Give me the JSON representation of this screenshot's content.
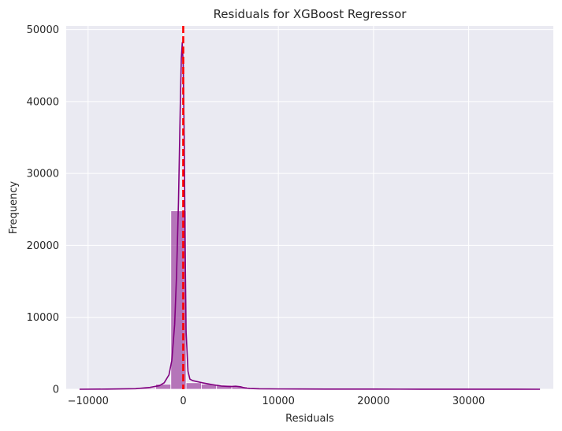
{
  "chart_data": {
    "type": "histogram",
    "title": "Residuals for XGBoost Regressor",
    "xlabel": "Residuals",
    "ylabel": "Frequency",
    "xlim": [
      -12300,
      38900
    ],
    "ylim": [
      0,
      50500
    ],
    "xticks": [
      -10000,
      0,
      10000,
      20000,
      30000
    ],
    "yticks": [
      0,
      10000,
      20000,
      30000,
      40000,
      50000
    ],
    "grid": true,
    "bin_edges": [
      -10900,
      -9300,
      -7700,
      -6100,
      -4500,
      -2900,
      -1300,
      300,
      1900,
      3500,
      5100,
      6700,
      8300,
      9900,
      11500,
      13100,
      14700,
      16300,
      17900,
      19500,
      21100,
      22700,
      24300,
      25900,
      27500,
      29100,
      30700,
      32300,
      33900,
      35500,
      37100
    ],
    "counts": [
      5,
      10,
      20,
      60,
      150,
      700,
      24800,
      900,
      700,
      550,
      350,
      80,
      40,
      25,
      20,
      15,
      12,
      10,
      8,
      6,
      6,
      5,
      5,
      4,
      4,
      3,
      3,
      2,
      2,
      1
    ],
    "kde": {
      "x": [
        -10900,
        -8000,
        -5000,
        -3500,
        -2500,
        -2000,
        -1500,
        -1200,
        -900,
        -700,
        -500,
        -400,
        -300,
        -200,
        -100,
        0,
        100,
        200,
        300,
        500,
        700,
        1000,
        2000,
        3000,
        4000,
        5000,
        5500,
        6000,
        6500,
        7000,
        8000,
        10000,
        15000,
        20000,
        25000,
        30000,
        35000,
        37500
      ],
      "y": [
        0,
        20,
        80,
        250,
        500,
        900,
        2000,
        4000,
        9000,
        16000,
        26000,
        33000,
        40000,
        46000,
        48200,
        45000,
        35000,
        20000,
        8000,
        2500,
        1400,
        1200,
        900,
        650,
        450,
        380,
        420,
        350,
        180,
        100,
        60,
        40,
        25,
        18,
        12,
        8,
        5,
        0
      ]
    },
    "mean_line": {
      "x": 0,
      "color": "#ff0000",
      "style": "dashed"
    },
    "bar_color": "#800080",
    "kde_color": "#800080"
  }
}
